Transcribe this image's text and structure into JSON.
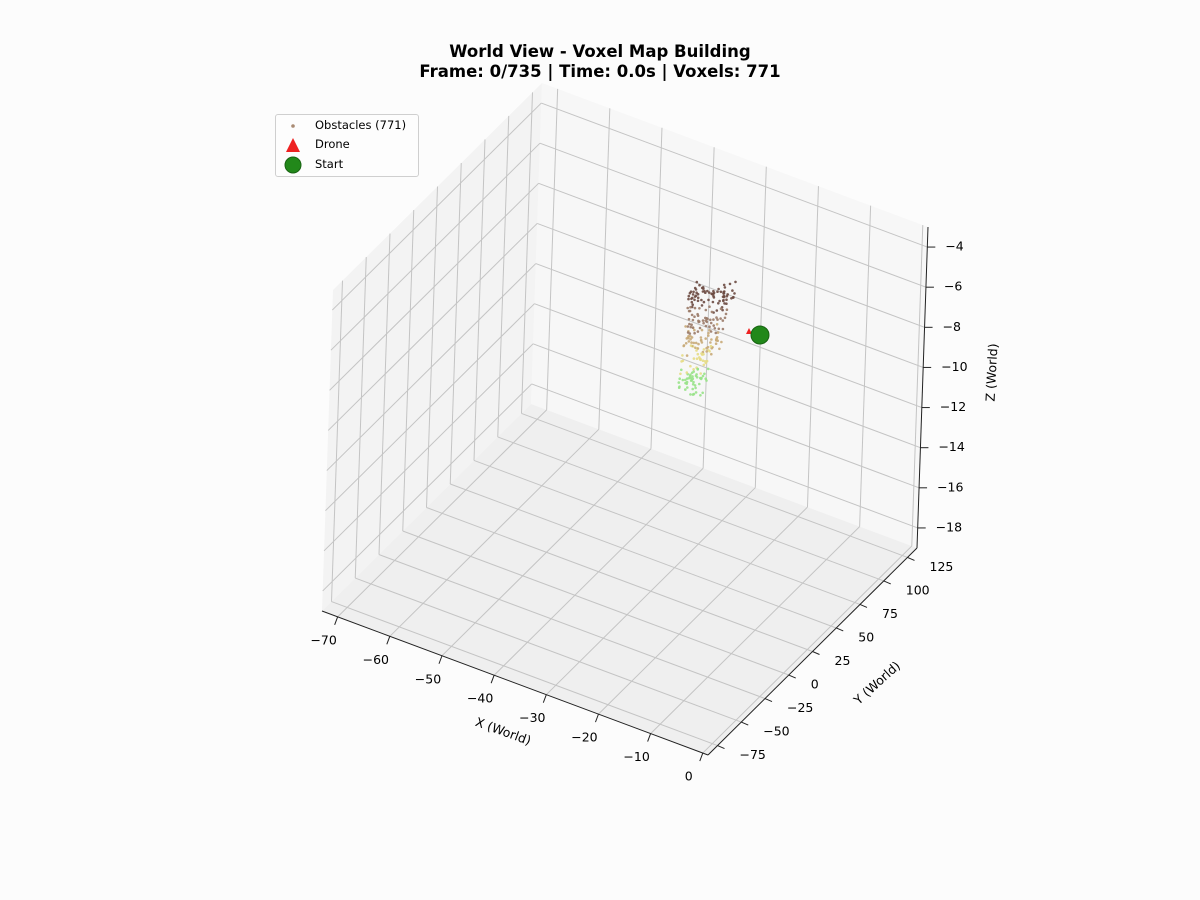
{
  "chart_data": {
    "type": "scatter",
    "title": "World View - Voxel Map Building",
    "subtitle": "Frame: 0/735 | Time: 0.0s | Voxels: 771",
    "xlabel": "X (World)",
    "ylabel": "Y (World)",
    "zlabel": "Z (World)",
    "x_ticks": [
      "−70",
      "−60",
      "−50",
      "−40",
      "−30",
      "−20",
      "−10",
      "0"
    ],
    "y_ticks": [
      "−75",
      "−50",
      "−25",
      "0",
      "25",
      "50",
      "75",
      "100",
      "125"
    ],
    "z_ticks": [
      "−4",
      "−6",
      "−8",
      "−10",
      "−12",
      "−14",
      "−16",
      "−18"
    ],
    "xlim": [
      -73,
      1
    ],
    "ylim": [
      -85,
      135
    ],
    "zlim": [
      -19,
      -3
    ],
    "grid": true,
    "legend_position": "top-left",
    "series": [
      {
        "name": "Obstacles (771)",
        "marker": "dot",
        "color": "#a98b74"
      },
      {
        "name": "Drone",
        "marker": "triangle",
        "color": "#ee2222"
      },
      {
        "name": "Start",
        "marker": "circle",
        "color": "#22881a"
      }
    ],
    "obstacles_colormap": [
      "#6b4a41",
      "#9a7a68",
      "#c8aa78",
      "#e6dc86",
      "#98e288"
    ]
  }
}
